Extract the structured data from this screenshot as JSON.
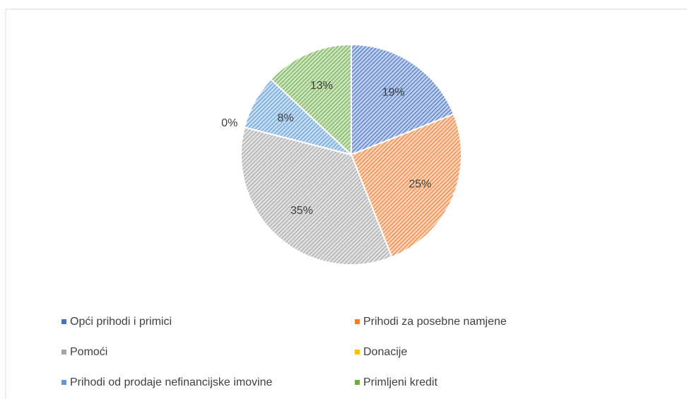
{
  "chart_data": {
    "type": "pie",
    "categories": [
      "Opći prihodi i primici",
      "Prihodi za posebne namjene",
      "Pomoći",
      "Donacije",
      "Prihodi od prodaje nefinancijske imovine",
      "Primljeni kredit"
    ],
    "values": [
      19,
      25,
      35,
      0,
      8,
      13
    ],
    "value_labels": [
      "19%",
      "25%",
      "35%",
      "0%",
      "8%",
      "13%"
    ],
    "colors": [
      "#4472c4",
      "#ed7d31",
      "#a5a5a5",
      "#ffc000",
      "#5b9bd5",
      "#70ad47"
    ],
    "legend": "bottom"
  }
}
